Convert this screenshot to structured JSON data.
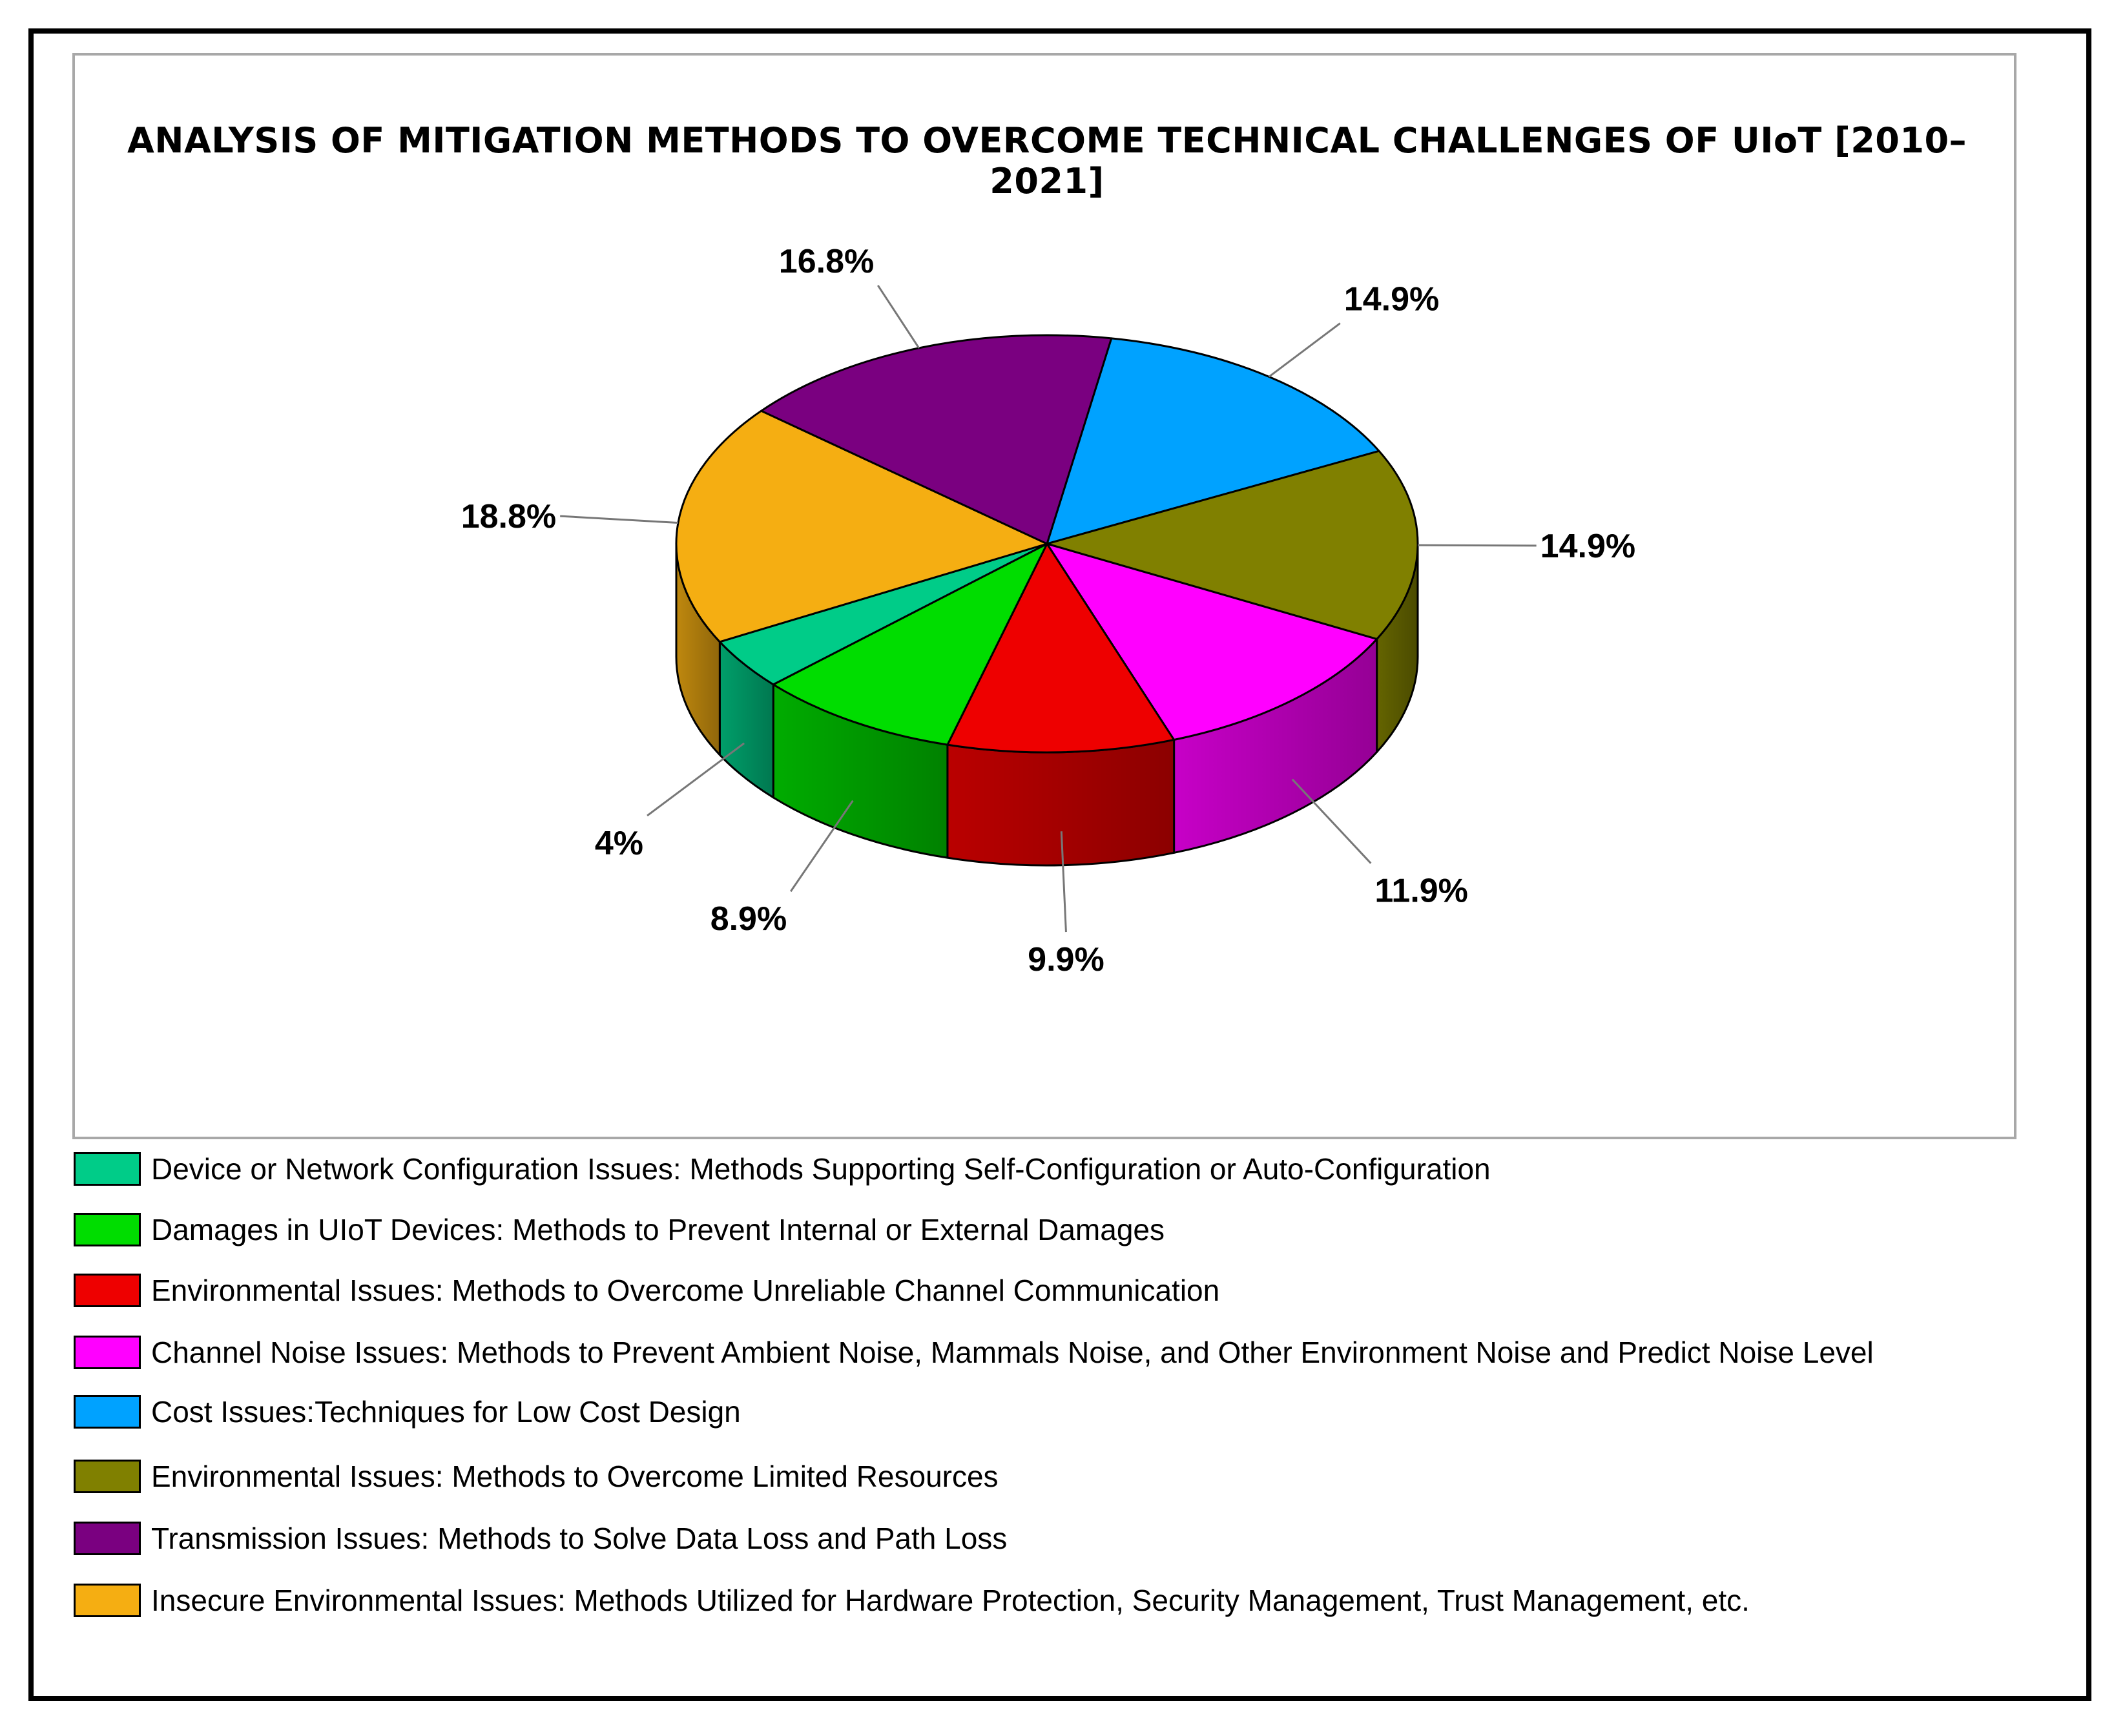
{
  "chart_data": {
    "type": "pie",
    "style": "3d",
    "title": "ANALYSIS OF MITIGATION METHODS TO OVERCOME TECHNICAL CHALLENGES OF UIoT [2010–2021]",
    "slices": [
      {
        "key": "cost",
        "label": "Cost Issues:Techniques for Low Cost Design",
        "value": 14.9,
        "display": "14.9%",
        "color": "#00a2ff"
      },
      {
        "key": "resources",
        "label": "Environmental Issues: Methods to Overcome Limited Resources",
        "value": 14.9,
        "display": "14.9%",
        "color": "#808000"
      },
      {
        "key": "noise",
        "label": "Channel Noise Issues: Methods to Prevent Ambient Noise, Mammals Noise, and Other Environment Noise and Predict Noise Level",
        "value": 11.9,
        "display": "11.9%",
        "color": "#ff00ff"
      },
      {
        "key": "channel",
        "label": "Environmental Issues: Methods to Overcome Unreliable Channel Communication",
        "value": 9.9,
        "display": "9.9%",
        "color": "#ee0000"
      },
      {
        "key": "damages",
        "label": "Damages in UIoT Devices: Methods to Prevent Internal or External Damages",
        "value": 8.9,
        "display": "8.9%",
        "color": "#00dd00"
      },
      {
        "key": "config",
        "label": "Device or Network Configuration Issues: Methods Supporting Self-Configuration or Auto-Configuration",
        "value": 4.0,
        "display": "4%",
        "color": "#00cc88"
      },
      {
        "key": "security",
        "label": "Insecure Environmental Issues: Methods Utilized for Hardware Protection, Security Management, Trust Management, etc.",
        "value": 18.8,
        "display": "18.8%",
        "color": "#f5ae12"
      },
      {
        "key": "transmission",
        "label": "Transmission Issues: Methods to Solve Data Loss and Path Loss",
        "value": 16.8,
        "display": "16.8%",
        "color": "#7a0080"
      }
    ],
    "legend": {
      "position": "bottom",
      "order": [
        "config",
        "damages",
        "channel",
        "noise",
        "cost",
        "resources",
        "transmission",
        "security"
      ]
    }
  }
}
